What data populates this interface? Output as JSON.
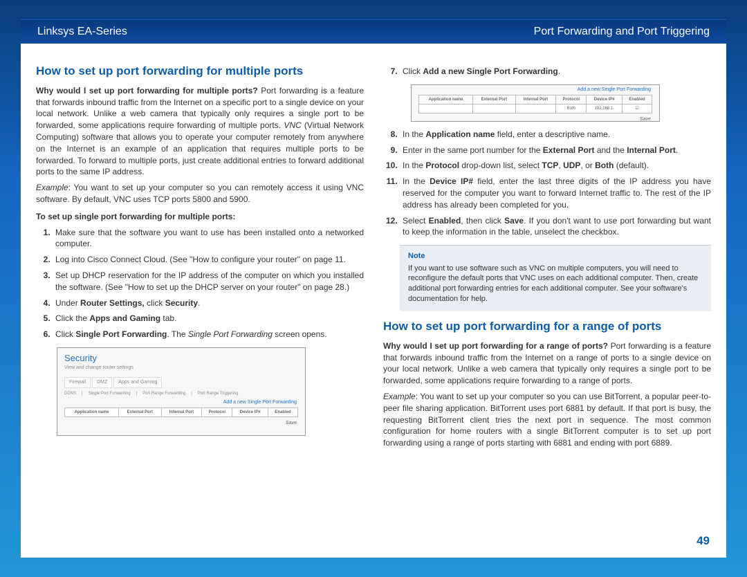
{
  "header": {
    "left": "Linksys EA-Series",
    "right": "Port Forwarding and Port Triggering"
  },
  "left_col": {
    "h1": "How to set up port forwarding for multiple ports",
    "intro_bold": "Why would I set up port forwarding for multiple ports?",
    "intro_rest": " Port forwarding is a feature that forwards inbound traffic from the Internet on a specific port to a single device on your local network. Unlike a web camera that typically only requires a single port to be forwarded, some applications require forwarding of multiple ports. ",
    "intro_italic": "VNC",
    "intro_rest2": " (Virtual Network Computing) software that allows you to operate your computer remotely from anywhere on the Internet is an example of an application that requires multiple ports to be forwarded. To forward to multiple ports, just create additional entries to forward additional ports to the same IP address.",
    "example_label": "Example",
    "example_rest": ": You want to set up your computer so you can remotely access it using VNC software. By default, VNC uses TCP ports 5800 and 5900.",
    "subhead": "To set up single port forwarding for multiple ports:",
    "steps": {
      "s1": "Make sure that the software you want to use has been installed onto a networked computer.",
      "s2": "Log into Cisco Connect Cloud. (See \"How to configure your router\" on page 11.",
      "s3": "Set up DHCP reservation for the IP address of the computer on which you installed the software. (See \"How to set up the DHCP server on your router\" on page 28.)",
      "s4_pre": "Under ",
      "s4_b1": "Router Settings,",
      "s4_mid": " click ",
      "s4_b2": "Security",
      "s4_post": ".",
      "s5_pre": "Click the ",
      "s5_b": "Apps and Gaming",
      "s5_post": " tab.",
      "s6_pre": "Click ",
      "s6_b": "Single Port Forwarding",
      "s6_mid": ". The ",
      "s6_i": "Single Port Forwarding",
      "s6_post": " screen opens."
    },
    "shot1": {
      "title": "Security",
      "sub": "View and change router settings",
      "tabs": {
        "t1": "Firewall",
        "t2": "DMZ",
        "t3": "Apps and Gaming"
      },
      "subtabs": {
        "st1": "DDNS",
        "st2": "Single Port Forwarding",
        "st3": "Port Range Forwarding",
        "st4": "Port Range Triggering"
      },
      "addlink": "Add a new Single Port Forwarding",
      "th": {
        "c1": "Application name",
        "c2": "External Port",
        "c3": "Internal Port",
        "c4": "Protocol",
        "c5": "Device IP#",
        "c6": "Enabled"
      },
      "save": "Save"
    }
  },
  "right_col": {
    "steps_cont": {
      "s7_pre": "Click ",
      "s7_b": "Add a new Single Port Forwarding",
      "s7_post": "."
    },
    "shot2": {
      "addlink": "Add a new Single Port Forwarding",
      "th": {
        "c1": "Application name",
        "c2": "External Port",
        "c3": "Internal Port",
        "c4": "Protocol",
        "c5": "Device IP#",
        "c6": "Enabled"
      },
      "row": {
        "proto": "Both",
        "ip": "192.168.1."
      },
      "save": "Save"
    },
    "steps2": {
      "s8_pre": "In the ",
      "s8_b": "Application name",
      "s8_post": " field, enter a descriptive name.",
      "s9_pre": "Enter in the same port number for the ",
      "s9_b1": "External Port",
      "s9_mid": " and the ",
      "s9_b2": "Internal Port",
      "s9_post": ".",
      "s10_pre": "In the ",
      "s10_b": "Protocol",
      "s10_mid": " drop-down list, select ",
      "s10_b2": "TCP",
      "s10_c": ", ",
      "s10_b3": "UDP",
      "s10_c2": ", or ",
      "s10_b4": "Both",
      "s10_post": " (default).",
      "s11_pre": "In the ",
      "s11_b": "Device IP#",
      "s11_post": " field, enter the last three digits of the IP address you have reserved for the computer you want to forward Internet traffic to. The rest of the IP address has already been completed for you.",
      "s12_pre": "Select ",
      "s12_b1": "Enabled",
      "s12_mid": ", then click ",
      "s12_b2": "Save",
      "s12_post": ". If you don't want to use port forwarding but want to keep the information in the table, unselect the checkbox."
    },
    "note": {
      "title": "Note",
      "body": "If you want to use software such as VNC on multiple computers, you will need to reconfigure the default ports that VNC uses on each additional computer. Then, create additional port forwarding entries for each additional computer. See your software's documentation for help."
    },
    "h2": "How to set up port forwarding for a range of ports",
    "intro2_bold": "Why would I set up port forwarding for a range of ports?",
    "intro2_rest": " Port forwarding is a feature that forwards inbound traffic from the Internet on a range of ports to a single device on your local network. Unlike a web camera that typically only requires a single port to be forwarded, some applications require forwarding to a range of ports.",
    "example2_label": "Example",
    "example2_rest": ": You want to set up your computer so you can use BitTorrent, a popular peer-to-peer file sharing application. BitTorrent uses port 6881 by default. If that port is busy, the requesting BitTorrent client tries the next port in sequence. The most common configuration for home routers with a single BitTorrent computer is to set up port forwarding using a range of ports starting with 6881 and ending with port 6889."
  },
  "pagenum": "49",
  "colors": {
    "heading": "#0d5ca8",
    "header_bg_top": "#083a7c",
    "header_bg_bot": "#0d4a9e",
    "note_bg": "#e8eef4",
    "page_bg": "#ffffff"
  }
}
